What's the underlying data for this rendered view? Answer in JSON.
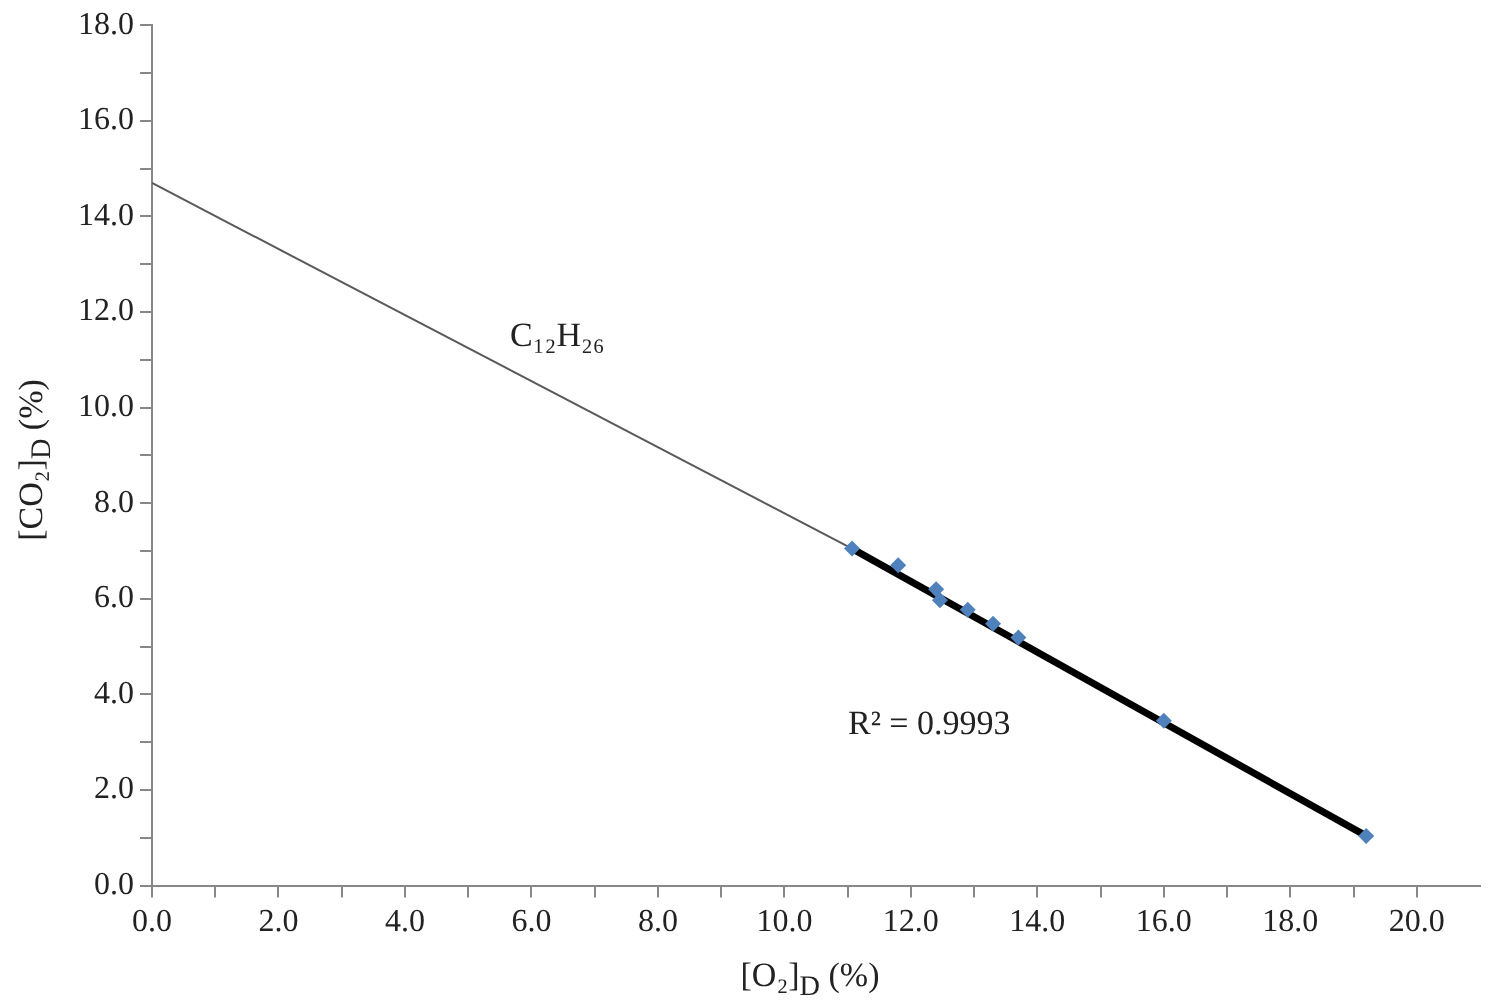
{
  "chart_data": {
    "type": "scatter",
    "xlabel": "[O₂]$_{D}$ (%)",
    "ylabel": "[CO₂]$_{D}$ (%)",
    "xlim": [
      0,
      21
    ],
    "ylim": [
      0,
      18
    ],
    "xticks": [
      {
        "value": 0,
        "label": "0.0"
      },
      {
        "value": 1,
        "label": null
      },
      {
        "value": 2,
        "label": "2.0"
      },
      {
        "value": 3,
        "label": null
      },
      {
        "value": 4,
        "label": "4.0"
      },
      {
        "value": 5,
        "label": null
      },
      {
        "value": 6,
        "label": "6.0"
      },
      {
        "value": 7,
        "label": null
      },
      {
        "value": 8,
        "label": "8.0"
      },
      {
        "value": 9,
        "label": null
      },
      {
        "value": 10,
        "label": "10.0"
      },
      {
        "value": 11,
        "label": null
      },
      {
        "value": 12,
        "label": "12.0"
      },
      {
        "value": 13,
        "label": null
      },
      {
        "value": 14,
        "label": "14.0"
      },
      {
        "value": 15,
        "label": null
      },
      {
        "value": 16,
        "label": "16.0"
      },
      {
        "value": 17,
        "label": null
      },
      {
        "value": 18,
        "label": "18.0"
      },
      {
        "value": 19,
        "label": null
      },
      {
        "value": 20,
        "label": "20.0"
      }
    ],
    "yticks": [
      {
        "value": 0,
        "label": "0.0"
      },
      {
        "value": 1,
        "label": null
      },
      {
        "value": 2,
        "label": "2.0"
      },
      {
        "value": 3,
        "label": null
      },
      {
        "value": 4,
        "label": "4.0"
      },
      {
        "value": 5,
        "label": null
      },
      {
        "value": 6,
        "label": "6.0"
      },
      {
        "value": 7,
        "label": null
      },
      {
        "value": 8,
        "label": "8.0"
      },
      {
        "value": 9,
        "label": null
      },
      {
        "value": 10,
        "label": "10.0"
      },
      {
        "value": 11,
        "label": null
      },
      {
        "value": 12,
        "label": "12.0"
      },
      {
        "value": 13,
        "label": null
      },
      {
        "value": 14,
        "label": "14.0"
      },
      {
        "value": 15,
        "label": null
      },
      {
        "value": 16,
        "label": "16.0"
      },
      {
        "value": 17,
        "label": null
      },
      {
        "value": 18,
        "label": "18.0"
      }
    ],
    "grid": false,
    "legend": false,
    "series": [
      {
        "type": "line",
        "color": "#595959",
        "marker": "none",
        "x": [
          0,
          11.07
        ],
        "values": [
          14.7,
          7.05
        ]
      },
      {
        "type": "line",
        "color": "#000000",
        "marker": "none",
        "x": [
          11.07,
          19.2
        ],
        "values": [
          7.05,
          1.04
        ]
      },
      {
        "type": "scatter",
        "color": "#4f81bd",
        "marker": "diamond",
        "x": [
          11.07,
          11.8,
          12.4,
          12.46,
          12.9,
          13.3,
          13.7,
          16.0,
          19.2
        ],
        "values": [
          7.05,
          6.7,
          6.2,
          5.97,
          5.77,
          5.48,
          5.19,
          3.45,
          1.04
        ]
      }
    ],
    "annotations": [
      "C₁₂H₂₆",
      "R² = 0.9993"
    ]
  }
}
